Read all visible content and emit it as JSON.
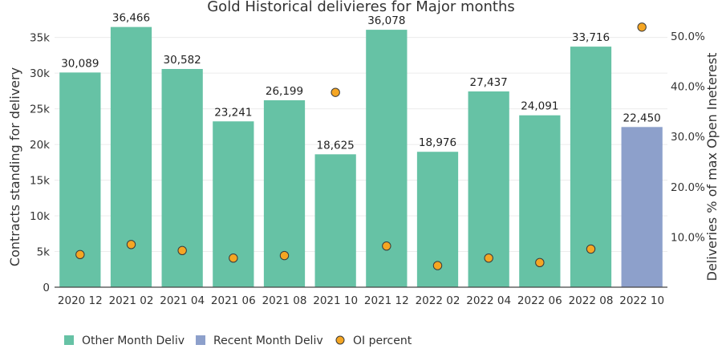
{
  "chart_data": {
    "type": "bar",
    "title": "Gold Historical delivieres for Major months",
    "categories": [
      "2020 12",
      "2021 02",
      "2021 04",
      "2021 06",
      "2021 08",
      "2021 10",
      "2021 12",
      "2022 02",
      "2022 04",
      "2022 06",
      "2022 08",
      "2022 10"
    ],
    "series": [
      {
        "name": "Other Month Deliv",
        "color": "#66c2a5",
        "values": [
          30089,
          36466,
          30582,
          23241,
          26199,
          18625,
          36078,
          18976,
          27437,
          24091,
          33716,
          null
        ],
        "labels": [
          "30,089",
          "36,466",
          "30,582",
          "23,241",
          "26,199",
          "18,625",
          "36,078",
          "18,976",
          "27,437",
          "24,091",
          "33,716",
          ""
        ]
      },
      {
        "name": "Recent Month Deliv",
        "color": "#8da0cb",
        "values": [
          null,
          null,
          null,
          null,
          null,
          null,
          null,
          null,
          null,
          null,
          null,
          22450
        ],
        "labels": [
          "",
          "",
          "",
          "",
          "",
          "",
          "",
          "",
          "",
          "",
          "",
          "22,450"
        ]
      },
      {
        "name": "OI percent",
        "type": "scatter",
        "axis": "right",
        "color": "#f5a623",
        "values": [
          6.5,
          8.5,
          7.3,
          5.8,
          6.3,
          38.8,
          8.2,
          4.3,
          5.8,
          4.9,
          7.6,
          51.8
        ]
      }
    ],
    "ylabel": "Contracts standing for delivery",
    "ylim": [
      0,
      38000
    ],
    "yticks": [
      0,
      5000,
      10000,
      15000,
      20000,
      25000,
      30000,
      35000
    ],
    "ytick_labels": [
      "0",
      "5k",
      "10k",
      "15k",
      "20k",
      "25k",
      "30k",
      "35k"
    ],
    "y2label": "Deliveries % of max Open Ineterest",
    "y2lim": [
      0,
      54
    ],
    "y2ticks": [
      10,
      20,
      30,
      40,
      50
    ],
    "y2tick_labels": [
      "10.0%",
      "20.0%",
      "30.0%",
      "40.0%",
      "50.0%"
    ],
    "grid": true,
    "legend_position": "bottom-left"
  }
}
